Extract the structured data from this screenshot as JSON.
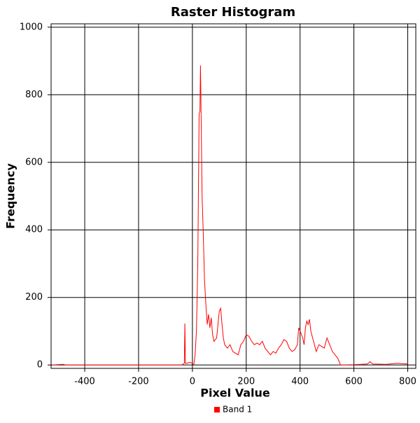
{
  "chart_data": {
    "type": "line",
    "title": "Raster Histogram",
    "x_label": "Pixel Value",
    "y_label": "Frequency",
    "x": [
      -520,
      -480,
      -470,
      -40,
      -30,
      -28,
      -26,
      -20,
      -10,
      0,
      5,
      10,
      15,
      20,
      25,
      28,
      30,
      33,
      36,
      40,
      45,
      50,
      55,
      60,
      65,
      70,
      75,
      80,
      90,
      100,
      105,
      110,
      115,
      120,
      130,
      140,
      150,
      160,
      170,
      180,
      190,
      200,
      210,
      220,
      230,
      240,
      250,
      260,
      270,
      280,
      290,
      300,
      310,
      320,
      330,
      340,
      350,
      360,
      370,
      380,
      390,
      395,
      400,
      410,
      415,
      420,
      425,
      430,
      435,
      440,
      450,
      460,
      470,
      480,
      490,
      500,
      510,
      520,
      530,
      540,
      548,
      550,
      600,
      650,
      660,
      670,
      720,
      760,
      800
    ],
    "series": [
      {
        "name": "Band 1",
        "color": "#ff0000",
        "values": [
          0,
          2,
          0,
          0,
          5,
          123,
          5,
          5,
          8,
          5,
          0,
          30,
          100,
          300,
          745,
          750,
          887,
          700,
          500,
          400,
          250,
          180,
          120,
          150,
          110,
          140,
          90,
          70,
          80,
          160,
          168,
          120,
          80,
          60,
          50,
          60,
          40,
          35,
          30,
          60,
          70,
          90,
          85,
          70,
          60,
          65,
          60,
          70,
          50,
          40,
          30,
          40,
          35,
          50,
          60,
          75,
          70,
          50,
          40,
          45,
          60,
          110,
          100,
          80,
          60,
          110,
          130,
          120,
          135,
          100,
          70,
          40,
          60,
          55,
          50,
          80,
          60,
          40,
          30,
          20,
          5,
          0,
          1,
          3,
          10,
          3,
          2,
          5,
          3
        ]
      }
    ],
    "xlim": [
      -525,
      830
    ],
    "ylim": [
      -10,
      1010
    ],
    "xticks": [
      -400,
      -200,
      0,
      200,
      400,
      600,
      800
    ],
    "yticks": [
      0,
      200,
      400,
      600,
      800,
      1000
    ],
    "grid": true,
    "legend": "bottom"
  }
}
